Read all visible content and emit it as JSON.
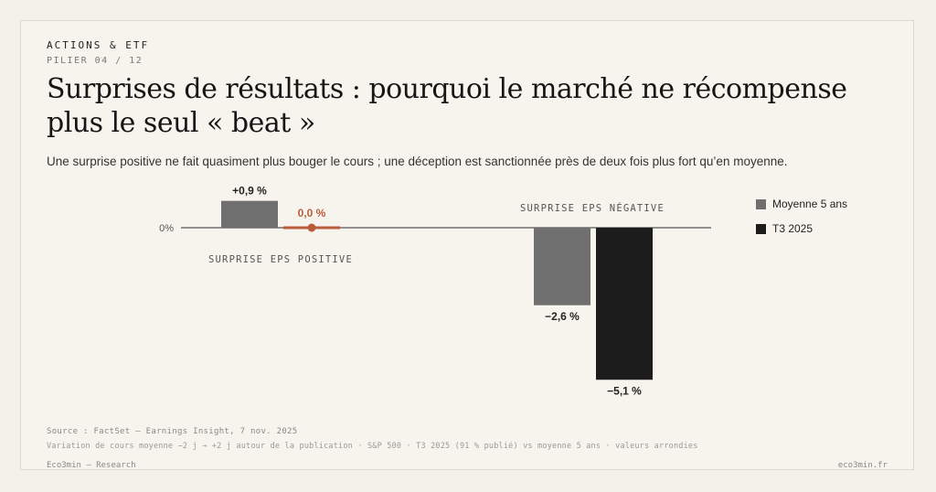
{
  "header": {
    "eyebrow": "ACTIONS & ETF",
    "pillar": "PILIER 04 / 12",
    "title": "Surprises de résultats : pourquoi le marché ne récompense plus le seul « beat »",
    "subtitle": "Une surprise positive ne fait quasiment plus bouger le cours ; une déception est sanctionnée près de deux fois plus fort qu’en moyenne."
  },
  "chart_data": {
    "type": "bar",
    "categories": [
      "SURPRISE EPS POSITIVE",
      "SURPRISE EPS NÉGATIVE"
    ],
    "series": [
      {
        "name": "Moyenne 5 ans",
        "values": [
          0.9,
          -2.6
        ],
        "labels": [
          "+0,9 %",
          "−2,6 %"
        ],
        "color": "#6f6f6f"
      },
      {
        "name": "T3 2025",
        "values": [
          0.0,
          -5.1
        ],
        "labels": [
          "0,0 %",
          "−5,1 %"
        ],
        "color": "#1c1c1c"
      }
    ],
    "highlight_color": "#b85c3c",
    "zero_label": "0%",
    "ylim": [
      -5.1,
      0.9
    ],
    "legend_position": "top-right",
    "grid": false
  },
  "footer": {
    "source": "Source : FactSet — Earnings Insight, 7 nov. 2025",
    "note": "Variation de cours moyenne −2 j → +2 j autour de la publication · S&P 500 · T3 2025 (91 % publié) vs moyenne 5 ans · valeurs arrondies",
    "brand": "Eco3min — Research",
    "site": "eco3min.fr"
  }
}
